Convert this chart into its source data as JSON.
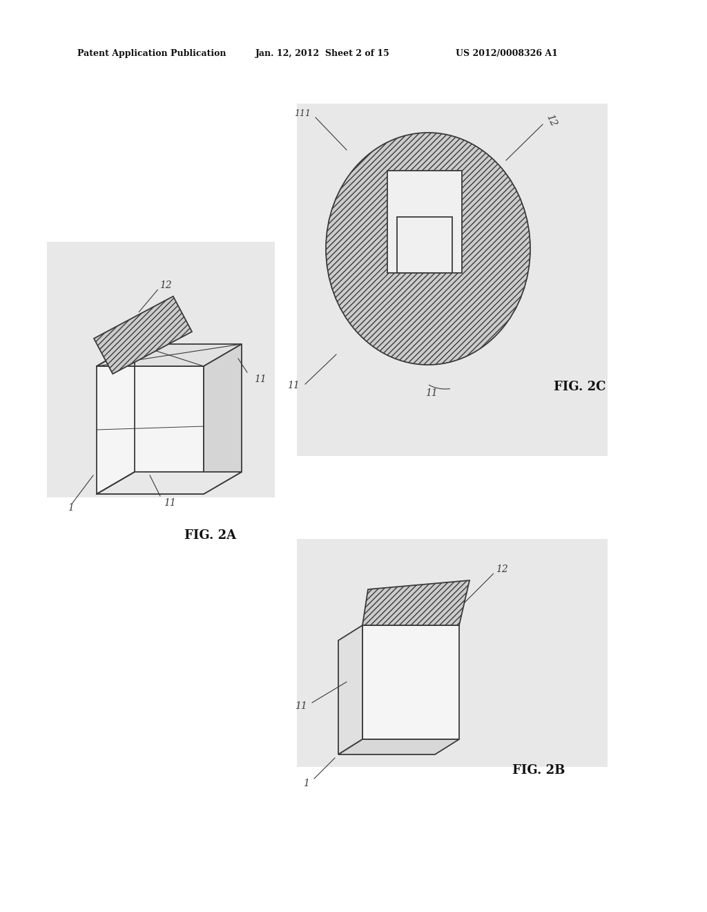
{
  "bg_color": "#ffffff",
  "header_left": "Patent Application Publication",
  "header_mid": "Jan. 12, 2012  Sheet 2 of 15",
  "header_right": "US 2012/0008326 A1",
  "fig2a_label": "FIG. 2A",
  "fig2b_label": "FIG. 2B",
  "fig2c_label": "FIG. 2C",
  "line_color": "#3a3a3a",
  "bg_panel_color": "#e8e8e8",
  "hatch_face_color": "#cccccc",
  "box_face_color": "#f5f5f5",
  "box_top_color": "#e2e2e2",
  "box_right_color": "#d5d5d5"
}
